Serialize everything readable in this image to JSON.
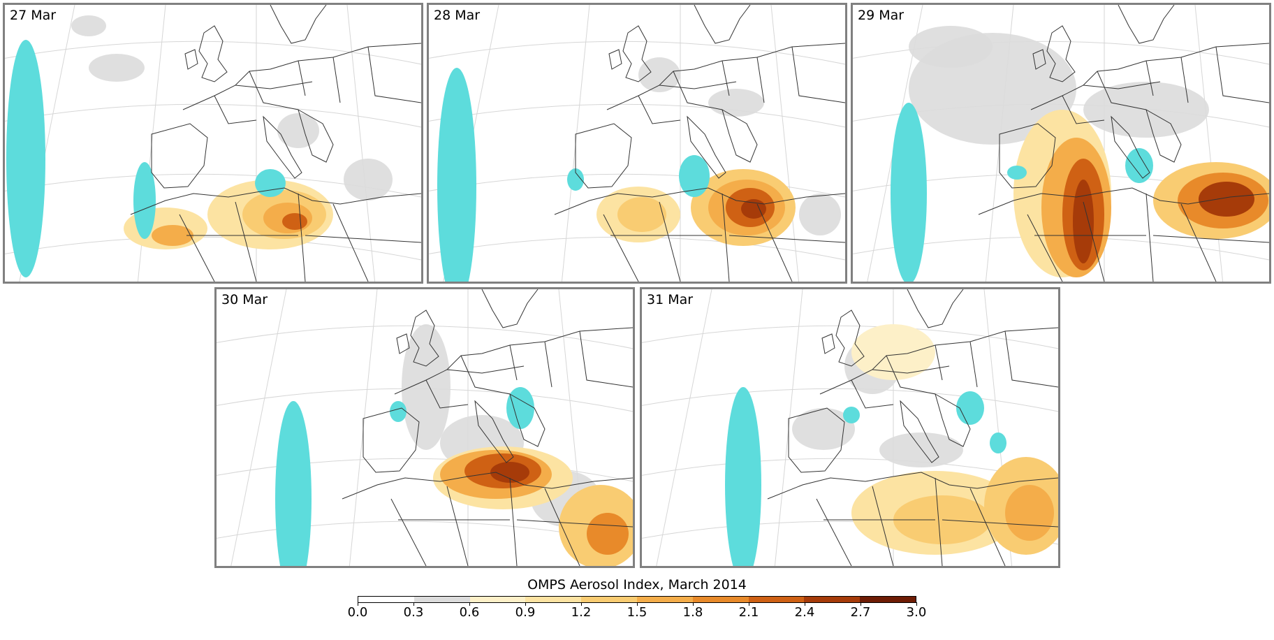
{
  "panels": [
    {
      "label": "27 Mar",
      "variant": 0
    },
    {
      "label": "28 Mar",
      "variant": 1
    },
    {
      "label": "29 Mar",
      "variant": 2
    },
    {
      "label": "30 Mar",
      "variant": 3
    },
    {
      "label": "31 Mar",
      "variant": 4
    }
  ],
  "colorbar": {
    "title": "OMPS Aerosol Index, March 2014",
    "tick_labels": [
      "0.0",
      "0.3",
      "0.6",
      "0.9",
      "1.2",
      "1.5",
      "1.8",
      "2.1",
      "2.4",
      "2.7",
      "3.0"
    ],
    "colors": [
      "#ffffff",
      "#dcdcdc",
      "#fdf0c8",
      "#fce3a2",
      "#f9cc72",
      "#f4ad4a",
      "#e88a2a",
      "#cf6114",
      "#a63b09",
      "#6e1c04"
    ]
  },
  "colors": {
    "no_data": "#5ddcdc",
    "frame": "#808080",
    "coastline": "#333333",
    "graticule": "#d6d6d6"
  }
}
